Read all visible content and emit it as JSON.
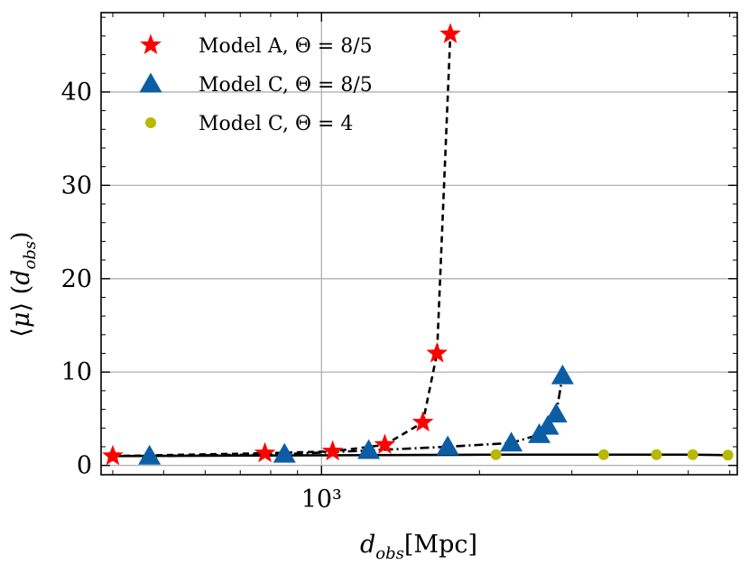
{
  "chart_data": {
    "type": "scatter",
    "xscale": "log",
    "xlim": [
      380,
      6200
    ],
    "ylim": [
      -1,
      48.5
    ],
    "grid": true,
    "xlabel": "d_obs[Mpc]",
    "ylabel": "⟨μ⟩ (d_obs)",
    "xticks": [
      {
        "value": 1000,
        "label": "10³"
      }
    ],
    "yticks": [
      0,
      10,
      20,
      30,
      40
    ],
    "legend_position": "top-left",
    "series": [
      {
        "name": "Model A, Θ = 8/5",
        "marker": "star",
        "color": "#ff0000",
        "line_style": "dashed",
        "x": [
          400,
          780,
          1050,
          1320,
          1560,
          1660,
          1760
        ],
        "y": [
          1.0,
          1.3,
          1.5,
          2.2,
          4.6,
          12.0,
          46.2
        ]
      },
      {
        "name": "Model C, Θ = 8/5",
        "marker": "triangle",
        "color": "#0c5da5",
        "line_style": "dashdot",
        "x": [
          470,
          850,
          1230,
          1740,
          2300,
          2600,
          2700,
          2800,
          2880
        ],
        "y": [
          1.0,
          1.2,
          1.6,
          2.0,
          2.4,
          3.3,
          4.2,
          5.5,
          9.6
        ]
      },
      {
        "name": "Model C, Θ = 4",
        "marker": "circle",
        "color": "#b8b800",
        "line_style": "solid",
        "x": [
          400,
          2150,
          3450,
          4350,
          5100,
          5950
        ],
        "y": [
          1.0,
          1.15,
          1.15,
          1.15,
          1.15,
          1.1
        ]
      }
    ]
  }
}
